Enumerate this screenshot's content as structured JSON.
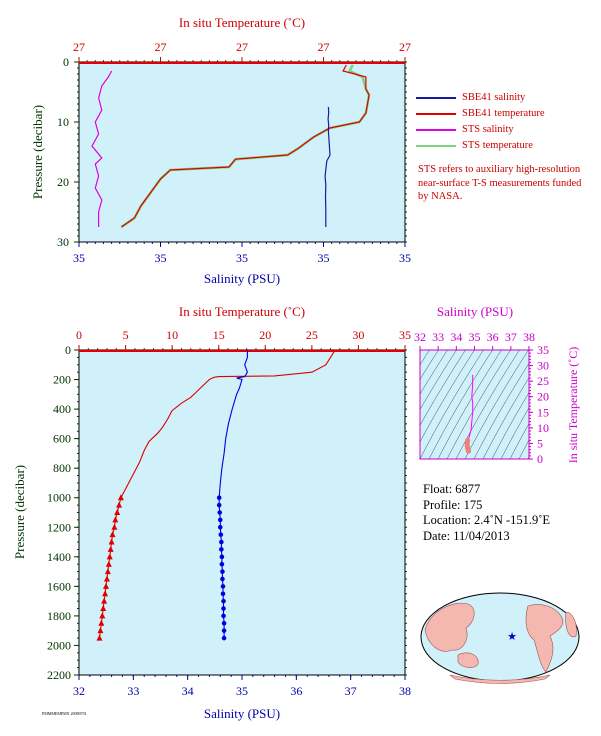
{
  "chart_data": [
    {
      "type": "line",
      "panel": "near-surface profile",
      "top_axis_label": "In situ Temperature (˚C)",
      "top_ticks": [
        "27",
        "27",
        "27",
        "27",
        "27"
      ],
      "bottom_axis_label": "Salinity (PSU)",
      "bottom_ticks": [
        "35",
        "35",
        "35",
        "35",
        "35"
      ],
      "ylabel": "Pressure (decibar)",
      "y_ticks": [
        "0",
        "10",
        "20",
        "30"
      ],
      "ylim": [
        30,
        0
      ],
      "series": [
        {
          "name": "SBE41 salinity",
          "color": "#1a1aa0",
          "x_rel": [
            0.765,
            0.766,
            0.764,
            0.766,
            0.765,
            0.77,
            0.76,
            0.755,
            0.757,
            0.756,
            0.757,
            0.757
          ],
          "y": [
            7.5,
            8.5,
            9.5,
            10.5,
            11.5,
            15.5,
            16.5,
            19,
            20.5,
            22.5,
            24.5,
            27.5
          ]
        },
        {
          "name": "SBE41 temperature",
          "color": "#e00000",
          "x_rel": [
            0.82,
            0.81,
            0.88,
            0.88,
            0.89,
            0.88,
            0.86,
            0.77,
            0.72,
            0.67,
            0.64,
            0.48,
            0.46,
            0.28,
            0.25,
            0.19,
            0.17,
            0.13
          ],
          "y": [
            0.5,
            1.5,
            2.5,
            4.5,
            5.5,
            8.5,
            10,
            11,
            12.5,
            14.5,
            15.5,
            16.2,
            17.5,
            18,
            19.5,
            24,
            26,
            27.5
          ]
        },
        {
          "name": "STS salinity",
          "color": "#e000e0",
          "x_rel": [
            0.1,
            0.09,
            0.07,
            0.06,
            0.07,
            0.05,
            0.06,
            0.04,
            0.07,
            0.05,
            0.06,
            0.05,
            0.07,
            0.06,
            0.06
          ],
          "y": [
            1.5,
            2.5,
            4,
            6,
            8,
            10,
            12,
            14,
            16,
            17,
            19,
            21,
            23,
            25,
            27.5
          ]
        },
        {
          "name": "STS temperature",
          "color": "#80d080",
          "x_rel": [
            0.84,
            0.83,
            0.87,
            0.88,
            0.89,
            0.88,
            0.86,
            0.77,
            0.72,
            0.67,
            0.64,
            0.48,
            0.46,
            0.28,
            0.25,
            0.19,
            0.17,
            0.13
          ],
          "y": [
            0.5,
            1.5,
            2.5,
            4.5,
            5.5,
            8.5,
            10,
            11,
            12.5,
            14.5,
            15.5,
            16.2,
            17.5,
            18,
            19.5,
            24,
            26,
            27.5
          ]
        }
      ]
    },
    {
      "type": "line",
      "panel": "full-depth profile",
      "top_axis_label": "In situ Temperature (˚C)",
      "bottom_axis_label": "Salinity (PSU)",
      "ylabel": "Pressure (decibar)",
      "temperature_range": [
        0,
        35
      ],
      "salinity_range": [
        32,
        38
      ],
      "pressure_range": [
        2200,
        0
      ],
      "temperature_ticks": [
        "0",
        "5",
        "10",
        "15",
        "20",
        "25",
        "30",
        "35"
      ],
      "salinity_ticks": [
        "32",
        "33",
        "34",
        "35",
        "36",
        "37",
        "38"
      ],
      "pressure_ticks": [
        "0",
        "200",
        "400",
        "600",
        "800",
        "1000",
        "1200",
        "1400",
        "1600",
        "1800",
        "2000",
        "2200"
      ],
      "series": [
        {
          "name": "temperature",
          "color": "#e00000",
          "points": [
            [
              27.5,
              0
            ],
            [
              27.0,
              50
            ],
            [
              26.5,
              100
            ],
            [
              25,
              150
            ],
            [
              21,
              175
            ],
            [
              15,
              180
            ],
            [
              14.5,
              185
            ],
            [
              14,
              200
            ],
            [
              13,
              260
            ],
            [
              12,
              320
            ],
            [
              11,
              360
            ],
            [
              10,
              410
            ],
            [
              9.5,
              470
            ],
            [
              9,
              520
            ],
            [
              8.5,
              560
            ],
            [
              7.5,
              620
            ],
            [
              7,
              680
            ],
            [
              6.5,
              760
            ],
            [
              6,
              820
            ],
            [
              5.5,
              880
            ],
            [
              5,
              940
            ],
            [
              4.5,
              1000
            ],
            [
              4.3,
              1050
            ],
            [
              4.1,
              1100
            ],
            [
              3.9,
              1150
            ],
            [
              3.8,
              1200
            ],
            [
              3.6,
              1250
            ],
            [
              3.5,
              1300
            ],
            [
              3.4,
              1350
            ],
            [
              3.3,
              1400
            ],
            [
              3.2,
              1450
            ],
            [
              3.1,
              1500
            ],
            [
              3.0,
              1550
            ],
            [
              2.9,
              1600
            ],
            [
              2.8,
              1650
            ],
            [
              2.7,
              1700
            ],
            [
              2.6,
              1750
            ],
            [
              2.5,
              1800
            ],
            [
              2.4,
              1850
            ],
            [
              2.3,
              1900
            ],
            [
              2.2,
              1950
            ]
          ]
        },
        {
          "name": "salinity",
          "color": "#0000dd",
          "points": [
            [
              35.1,
              0
            ],
            [
              35.1,
              50
            ],
            [
              35.05,
              100
            ],
            [
              35.1,
              150
            ],
            [
              35.05,
              180
            ],
            [
              34.9,
              190
            ],
            [
              35.0,
              200
            ],
            [
              34.95,
              260
            ],
            [
              34.9,
              300
            ],
            [
              34.82,
              400
            ],
            [
              34.75,
              500
            ],
            [
              34.7,
              600
            ],
            [
              34.67,
              700
            ],
            [
              34.63,
              800
            ],
            [
              34.6,
              900
            ],
            [
              34.58,
              1000
            ],
            [
              34.58,
              1050
            ],
            [
              34.59,
              1100
            ],
            [
              34.6,
              1150
            ],
            [
              34.6,
              1200
            ],
            [
              34.61,
              1250
            ],
            [
              34.62,
              1300
            ],
            [
              34.62,
              1350
            ],
            [
              34.63,
              1400
            ],
            [
              34.63,
              1450
            ],
            [
              34.64,
              1500
            ],
            [
              34.64,
              1550
            ],
            [
              34.65,
              1600
            ],
            [
              34.65,
              1650
            ],
            [
              34.66,
              1700
            ],
            [
              34.66,
              1750
            ],
            [
              34.66,
              1800
            ],
            [
              34.67,
              1850
            ],
            [
              34.67,
              1900
            ],
            [
              34.67,
              1950
            ]
          ]
        }
      ]
    },
    {
      "type": "scatter",
      "panel": "T-S diagram",
      "top_axis_label": "Salinity (PSU)",
      "right_axis_label": "In situ Temperature (˚C)",
      "salinity_ticks": [
        "32",
        "33",
        "34",
        "35",
        "36",
        "37",
        "38"
      ],
      "temperature_ticks": [
        "0",
        "5",
        "10",
        "15",
        "20",
        "25",
        "30",
        "35"
      ],
      "xlim": [
        32,
        38
      ],
      "ylim": [
        0,
        35
      ],
      "color": "#ff00ff",
      "points": [
        [
          34.9,
          27
        ],
        [
          34.9,
          24
        ],
        [
          34.85,
          20
        ],
        [
          34.9,
          18
        ],
        [
          34.9,
          15
        ],
        [
          34.85,
          12
        ],
        [
          34.8,
          9
        ],
        [
          34.7,
          7
        ],
        [
          34.62,
          6
        ],
        [
          34.6,
          5
        ],
        [
          34.6,
          4.2
        ],
        [
          34.62,
          3.5
        ],
        [
          34.65,
          3.0
        ],
        [
          34.67,
          2.5
        ]
      ]
    }
  ],
  "legend": [
    {
      "label": "SBE41 salinity",
      "color": "#1a1aa0"
    },
    {
      "label": "SBE41 temperature",
      "color": "#e00000"
    },
    {
      "label": "STS salinity",
      "color": "#e000e0"
    },
    {
      "label": "STS temperature",
      "color": "#80d080"
    }
  ],
  "note": "STS refers to auxiliary high-resolution near-surface T-S measurements funded by NASA.",
  "float_info": {
    "float": "Float:  6877",
    "profile": "Profile:  175",
    "location": "Location:  2.4˚N  -151.9˚E",
    "date": "Date:  11/04/2013"
  },
  "stamp": "PMMMEMPMX 20080701"
}
